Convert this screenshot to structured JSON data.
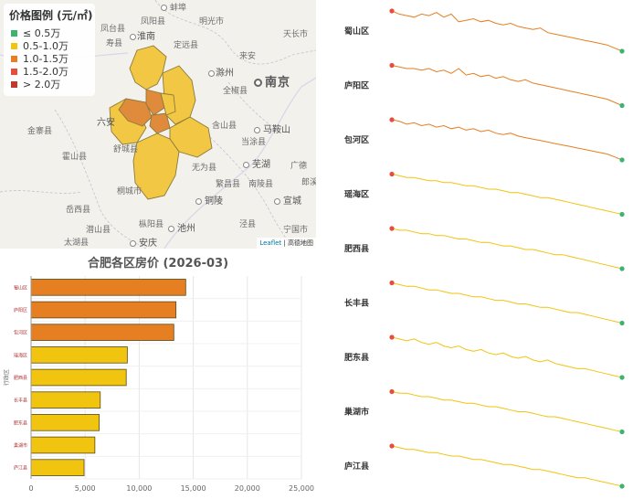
{
  "map": {
    "legend": {
      "title": "价格图例 (元/㎡)",
      "items": [
        {
          "label": "≤ 0.5万",
          "color": "#3cb371"
        },
        {
          "label": "0.5-1.0万",
          "color": "#f1c40f"
        },
        {
          "label": "1.0-1.5万",
          "color": "#e67e22"
        },
        {
          "label": "1.5-2.0万",
          "color": "#e74c3c"
        },
        {
          "label": "> 2.0万",
          "color": "#c0392b"
        }
      ]
    },
    "place_labels": [
      "蚌埠",
      "明光市",
      "凤阳县",
      "天长市",
      "定远县",
      "淮南",
      "寿县",
      "来安",
      "滁州",
      "南京",
      "全椒县",
      "六安",
      "含山县",
      "马鞍山",
      "金寨县",
      "舒城县",
      "当涂县",
      "芜湖",
      "无为县",
      "霍山县",
      "繁昌县",
      "南陵县",
      "宣城",
      "桐城市",
      "铜陵",
      "岳西县",
      "潜山县",
      "池州",
      "泾县",
      "枞阳县",
      "宁国市",
      "安庆",
      "郎溪",
      "凤台县",
      "太湖县",
      "广德"
    ],
    "attribution": {
      "leaflet": "Leaflet",
      "rest": "| 高德地图"
    }
  },
  "chart_data": [
    {
      "type": "bar",
      "orientation": "horizontal",
      "title": "合肥各区房价 (2026-03)",
      "ylabel": "行政区",
      "xlabel": "",
      "categories": [
        "蜀山区",
        "庐阳区",
        "包河区",
        "瑶海区",
        "肥西县",
        "长丰县",
        "肥东县",
        "巢湖市",
        "庐江县"
      ],
      "values": [
        14300,
        13400,
        13200,
        8900,
        8800,
        6400,
        6300,
        5900,
        4900
      ],
      "colors": [
        "#e67e22",
        "#e67e22",
        "#e67e22",
        "#f1c40f",
        "#f1c40f",
        "#f1c40f",
        "#f1c40f",
        "#f1c40f",
        "#f1c40f"
      ],
      "xlim": [
        0,
        25000
      ],
      "xticks": [
        "0",
        "5,000",
        "10,000",
        "15,000",
        "20,000",
        "25,000"
      ],
      "grid": true
    },
    {
      "type": "line",
      "title": "",
      "series": [
        {
          "name": "蜀山区",
          "color": "#e67e22",
          "values": [
            1.0,
            0.98,
            0.97,
            0.96,
            0.98,
            0.97,
            0.99,
            0.96,
            0.98,
            0.93,
            0.94,
            0.95,
            0.93,
            0.94,
            0.92,
            0.91,
            0.92,
            0.9,
            0.89,
            0.88,
            0.89,
            0.86,
            0.85,
            0.84,
            0.83,
            0.82,
            0.81,
            0.8,
            0.79,
            0.78,
            0.76,
            0.74
          ]
        },
        {
          "name": "庐阳区",
          "color": "#e67e22",
          "values": [
            1.0,
            0.99,
            0.98,
            0.98,
            0.97,
            0.98,
            0.96,
            0.97,
            0.95,
            0.98,
            0.94,
            0.95,
            0.93,
            0.94,
            0.92,
            0.93,
            0.91,
            0.9,
            0.91,
            0.89,
            0.88,
            0.87,
            0.86,
            0.85,
            0.84,
            0.83,
            0.82,
            0.81,
            0.8,
            0.79,
            0.77,
            0.75
          ]
        },
        {
          "name": "包河区",
          "color": "#e67e22",
          "values": [
            1.0,
            0.99,
            0.97,
            0.98,
            0.96,
            0.97,
            0.95,
            0.96,
            0.94,
            0.95,
            0.93,
            0.94,
            0.92,
            0.93,
            0.91,
            0.9,
            0.91,
            0.89,
            0.88,
            0.87,
            0.86,
            0.85,
            0.84,
            0.83,
            0.82,
            0.81,
            0.8,
            0.79,
            0.78,
            0.77,
            0.75,
            0.73
          ]
        },
        {
          "name": "瑶海区",
          "color": "#f1c40f",
          "values": [
            1.0,
            0.99,
            0.98,
            0.98,
            0.97,
            0.96,
            0.96,
            0.95,
            0.95,
            0.94,
            0.93,
            0.93,
            0.92,
            0.91,
            0.91,
            0.9,
            0.89,
            0.89,
            0.88,
            0.87,
            0.86,
            0.86,
            0.85,
            0.84,
            0.83,
            0.82,
            0.81,
            0.8,
            0.79,
            0.78,
            0.77,
            0.76
          ]
        },
        {
          "name": "肥西县",
          "color": "#f1c40f",
          "values": [
            1.0,
            0.99,
            0.99,
            0.98,
            0.97,
            0.97,
            0.96,
            0.96,
            0.95,
            0.94,
            0.94,
            0.93,
            0.92,
            0.92,
            0.91,
            0.9,
            0.9,
            0.89,
            0.88,
            0.88,
            0.87,
            0.86,
            0.85,
            0.85,
            0.84,
            0.83,
            0.82,
            0.81,
            0.8,
            0.79,
            0.78,
            0.77
          ]
        },
        {
          "name": "长丰县",
          "color": "#f1c40f",
          "values": [
            1.0,
            0.99,
            0.98,
            0.98,
            0.97,
            0.96,
            0.96,
            0.95,
            0.94,
            0.94,
            0.93,
            0.92,
            0.92,
            0.91,
            0.9,
            0.9,
            0.89,
            0.88,
            0.88,
            0.87,
            0.86,
            0.86,
            0.85,
            0.84,
            0.83,
            0.83,
            0.82,
            0.81,
            0.8,
            0.79,
            0.78,
            0.77
          ]
        },
        {
          "name": "肥东县",
          "color": "#f1c40f",
          "values": [
            1.0,
            0.99,
            0.98,
            0.99,
            0.97,
            0.96,
            0.97,
            0.95,
            0.94,
            0.95,
            0.93,
            0.92,
            0.93,
            0.91,
            0.9,
            0.91,
            0.89,
            0.88,
            0.89,
            0.87,
            0.86,
            0.87,
            0.85,
            0.84,
            0.83,
            0.82,
            0.82,
            0.81,
            0.8,
            0.79,
            0.78,
            0.77
          ]
        },
        {
          "name": "巢湖市",
          "color": "#f1c40f",
          "values": [
            1.0,
            0.99,
            0.99,
            0.98,
            0.97,
            0.97,
            0.96,
            0.95,
            0.95,
            0.94,
            0.93,
            0.93,
            0.92,
            0.91,
            0.91,
            0.9,
            0.89,
            0.88,
            0.88,
            0.87,
            0.86,
            0.85,
            0.85,
            0.84,
            0.83,
            0.82,
            0.81,
            0.8,
            0.79,
            0.78,
            0.77,
            0.76
          ]
        },
        {
          "name": "庐江县",
          "color": "#f1c40f",
          "values": [
            1.0,
            0.99,
            0.98,
            0.98,
            0.97,
            0.96,
            0.96,
            0.95,
            0.94,
            0.94,
            0.93,
            0.92,
            0.92,
            0.91,
            0.9,
            0.89,
            0.89,
            0.88,
            0.87,
            0.86,
            0.86,
            0.85,
            0.84,
            0.83,
            0.82,
            0.81,
            0.81,
            0.8,
            0.79,
            0.78,
            0.77,
            0.76
          ]
        }
      ],
      "start_marker_color": "#e74c3c",
      "end_marker_color": "#3cb371"
    }
  ]
}
